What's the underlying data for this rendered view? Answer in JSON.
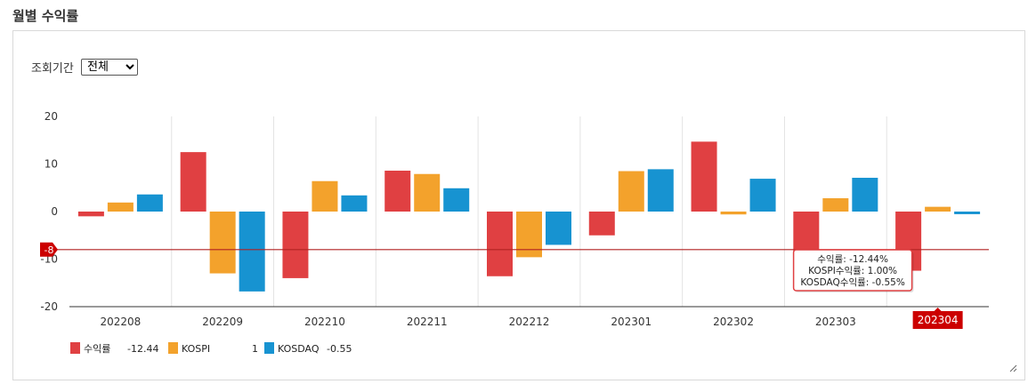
{
  "page": {
    "title": "월별 수익률",
    "period_label": "조회기간",
    "period_options": [
      "전체"
    ],
    "period_selected": "전체"
  },
  "chart_data": {
    "type": "bar",
    "categories": [
      "202208",
      "202209",
      "202210",
      "202211",
      "202212",
      "202301",
      "202302",
      "202303",
      "202304"
    ],
    "series": [
      {
        "name": "수익률",
        "color": "#e04042",
        "values": [
          -1,
          12.5,
          -14,
          8.6,
          -13.6,
          -5,
          14.7,
          -9.2,
          -12.44
        ]
      },
      {
        "name": "KOSPI",
        "color": "#f3a22c",
        "values": [
          1.9,
          -13,
          6.4,
          7.9,
          -9.6,
          8.5,
          -0.6,
          2.8,
          1.0
        ]
      },
      {
        "name": "KOSDAQ",
        "color": "#1793d1",
        "values": [
          3.6,
          -16.8,
          3.4,
          4.9,
          -7,
          8.9,
          6.9,
          7.1,
          -0.55
        ]
      }
    ],
    "ylim": [
      -20,
      20
    ],
    "yticks": [
      20,
      10,
      0,
      -10,
      -20
    ],
    "reference_line": {
      "value": -8,
      "label": "-8",
      "color": "#b22222"
    },
    "highlight_category": "202304",
    "tooltip": {
      "category": "202304",
      "lines": [
        "수익률: -12.44%",
        "KOSPI수익률: 1.00%",
        "KOSDAQ수익률: -0.55%"
      ]
    },
    "legend": [
      {
        "name": "수익률",
        "value": "-12.44",
        "color": "#e04042"
      },
      {
        "name": "KOSPI",
        "value": "1",
        "color": "#f3a22c"
      },
      {
        "name": "KOSDAQ",
        "value": "-0.55",
        "color": "#1793d1"
      }
    ],
    "legend_position": "bottom-left",
    "grid": {
      "vertical": true,
      "horizontal": false
    }
  }
}
